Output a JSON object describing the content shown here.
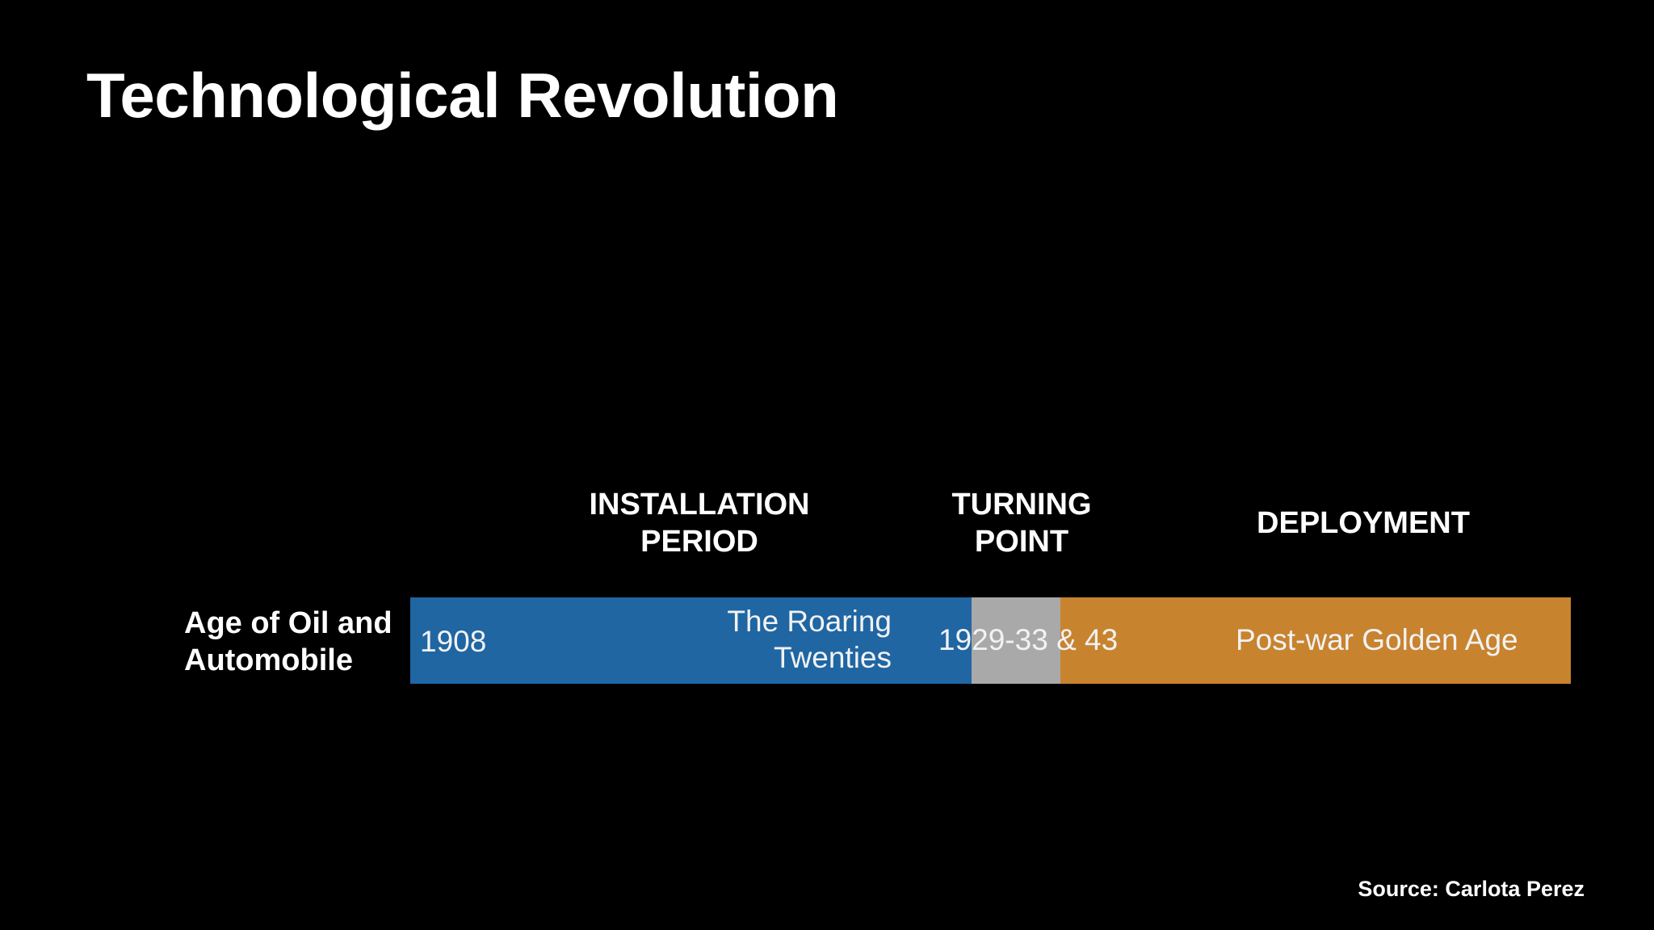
{
  "title": "Technological Revolution",
  "phases": {
    "installation": {
      "line1": "INSTALLATION",
      "line2": "PERIOD",
      "color": "#1f66a3"
    },
    "turning_point": {
      "line1": "TURNING",
      "line2": "POINT",
      "color": "#a9a9a9"
    },
    "deployment": {
      "line1": "DEPLOYMENT",
      "color": "#c8832f"
    }
  },
  "row": {
    "label_line1": "Age of Oil and",
    "label_line2": "Automobile",
    "start_year": "1908",
    "installation_text_line1": "The Roaring",
    "installation_text_line2": "Twenties",
    "turning_years": "1929-33 & 43",
    "deployment_text": "Post-war Golden Age"
  },
  "source": "Source: Carlota Perez"
}
